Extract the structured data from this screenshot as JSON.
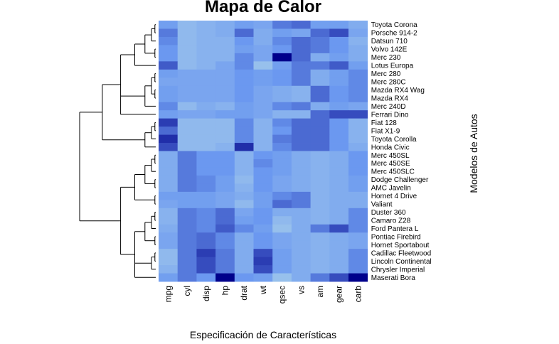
{
  "chart_data": {
    "type": "heatmap",
    "title": "Mapa de Calor",
    "xlabel": "Especificación de Características",
    "ylabel": "Modelos de Autos",
    "columns": [
      "mpg",
      "cyl",
      "disp",
      "hp",
      "drat",
      "wt",
      "qsec",
      "vs",
      "am",
      "gear",
      "carb"
    ],
    "rows": [
      "Toyota Corona",
      "Porsche 914-2",
      "Datsun 710",
      "Volvo 142E",
      "Merc 230",
      "Lotus Europa",
      "Merc 280",
      "Merc 280C",
      "Mazda RX4 Wag",
      "Mazda RX4",
      "Merc 240D",
      "Ferrari Dino",
      "Fiat 128",
      "Fiat X1-9",
      "Toyota Corolla",
      "Honda Civic",
      "Merc 450SL",
      "Merc 450SE",
      "Merc 450SLC",
      "Dodge Challenger",
      "AMC Javelin",
      "Hornet 4 Drive",
      "Valiant",
      "Duster 360",
      "Camaro Z28",
      "Ford Pantera L",
      "Pontiac Firebird",
      "Hornet Sportabout",
      "Cadillac Fleetwood",
      "Lincoln Continental",
      "Chrysler Imperial",
      "Maserati Bora"
    ],
    "scale_note": "column-scaled values; low = light blue, high = dark blue",
    "colors": {
      "low": "#b4daea",
      "mid": "#6b98f0",
      "high": "#00008b"
    },
    "values": [
      [
        0.45,
        0.25,
        0.3,
        0.35,
        0.45,
        0.4,
        0.6,
        0.65,
        0.45,
        0.45,
        0.35
      ],
      [
        0.6,
        0.25,
        0.3,
        0.35,
        0.65,
        0.35,
        0.45,
        0.4,
        0.65,
        0.75,
        0.4
      ],
      [
        0.55,
        0.25,
        0.3,
        0.3,
        0.5,
        0.35,
        0.55,
        0.65,
        0.6,
        0.5,
        0.3
      ],
      [
        0.5,
        0.25,
        0.3,
        0.3,
        0.45,
        0.4,
        0.5,
        0.65,
        0.6,
        0.5,
        0.35
      ],
      [
        0.5,
        0.25,
        0.3,
        0.3,
        0.55,
        0.4,
        1.0,
        0.65,
        0.35,
        0.45,
        0.35
      ],
      [
        0.7,
        0.25,
        0.3,
        0.4,
        0.55,
        0.2,
        0.45,
        0.6,
        0.6,
        0.7,
        0.45
      ],
      [
        0.45,
        0.4,
        0.4,
        0.4,
        0.5,
        0.45,
        0.5,
        0.6,
        0.35,
        0.45,
        0.55
      ],
      [
        0.4,
        0.4,
        0.4,
        0.4,
        0.5,
        0.45,
        0.5,
        0.6,
        0.35,
        0.45,
        0.55
      ],
      [
        0.45,
        0.4,
        0.4,
        0.4,
        0.5,
        0.4,
        0.35,
        0.3,
        0.65,
        0.5,
        0.55
      ],
      [
        0.45,
        0.4,
        0.4,
        0.4,
        0.5,
        0.4,
        0.35,
        0.3,
        0.65,
        0.5,
        0.55
      ],
      [
        0.55,
        0.25,
        0.35,
        0.3,
        0.45,
        0.4,
        0.55,
        0.6,
        0.35,
        0.45,
        0.4
      ],
      [
        0.45,
        0.4,
        0.4,
        0.45,
        0.45,
        0.4,
        0.3,
        0.3,
        0.65,
        0.75,
        0.75
      ],
      [
        0.8,
        0.25,
        0.25,
        0.25,
        0.55,
        0.3,
        0.55,
        0.65,
        0.65,
        0.5,
        0.3
      ],
      [
        0.65,
        0.25,
        0.25,
        0.25,
        0.55,
        0.3,
        0.5,
        0.65,
        0.65,
        0.5,
        0.3
      ],
      [
        0.85,
        0.25,
        0.25,
        0.25,
        0.55,
        0.3,
        0.6,
        0.65,
        0.65,
        0.5,
        0.3
      ],
      [
        0.75,
        0.25,
        0.25,
        0.3,
        0.85,
        0.3,
        0.55,
        0.65,
        0.65,
        0.5,
        0.35
      ],
      [
        0.35,
        0.6,
        0.5,
        0.5,
        0.3,
        0.5,
        0.45,
        0.35,
        0.3,
        0.35,
        0.5
      ],
      [
        0.35,
        0.6,
        0.5,
        0.5,
        0.3,
        0.55,
        0.45,
        0.35,
        0.3,
        0.35,
        0.5
      ],
      [
        0.35,
        0.6,
        0.5,
        0.5,
        0.3,
        0.5,
        0.45,
        0.35,
        0.3,
        0.35,
        0.5
      ],
      [
        0.35,
        0.6,
        0.55,
        0.45,
        0.25,
        0.5,
        0.4,
        0.35,
        0.3,
        0.35,
        0.45
      ],
      [
        0.35,
        0.6,
        0.55,
        0.45,
        0.3,
        0.5,
        0.4,
        0.35,
        0.3,
        0.35,
        0.45
      ],
      [
        0.45,
        0.45,
        0.45,
        0.4,
        0.35,
        0.45,
        0.55,
        0.6,
        0.3,
        0.35,
        0.35
      ],
      [
        0.4,
        0.45,
        0.45,
        0.4,
        0.25,
        0.45,
        0.65,
        0.6,
        0.3,
        0.35,
        0.35
      ],
      [
        0.3,
        0.6,
        0.55,
        0.65,
        0.4,
        0.5,
        0.35,
        0.35,
        0.3,
        0.35,
        0.55
      ],
      [
        0.3,
        0.6,
        0.55,
        0.65,
        0.45,
        0.5,
        0.25,
        0.35,
        0.3,
        0.35,
        0.55
      ],
      [
        0.35,
        0.6,
        0.55,
        0.7,
        0.55,
        0.45,
        0.2,
        0.35,
        0.6,
        0.75,
        0.55
      ],
      [
        0.4,
        0.6,
        0.65,
        0.55,
        0.35,
        0.5,
        0.4,
        0.35,
        0.3,
        0.35,
        0.4
      ],
      [
        0.4,
        0.6,
        0.65,
        0.55,
        0.35,
        0.5,
        0.4,
        0.35,
        0.3,
        0.35,
        0.4
      ],
      [
        0.25,
        0.6,
        0.8,
        0.6,
        0.35,
        0.75,
        0.45,
        0.35,
        0.3,
        0.35,
        0.55
      ],
      [
        0.25,
        0.6,
        0.75,
        0.6,
        0.35,
        0.8,
        0.45,
        0.35,
        0.3,
        0.35,
        0.55
      ],
      [
        0.3,
        0.6,
        0.75,
        0.6,
        0.35,
        0.75,
        0.45,
        0.35,
        0.3,
        0.35,
        0.55
      ],
      [
        0.45,
        0.6,
        0.5,
        1.0,
        0.5,
        0.45,
        0.2,
        0.35,
        0.6,
        0.75,
        1.0
      ]
    ]
  }
}
